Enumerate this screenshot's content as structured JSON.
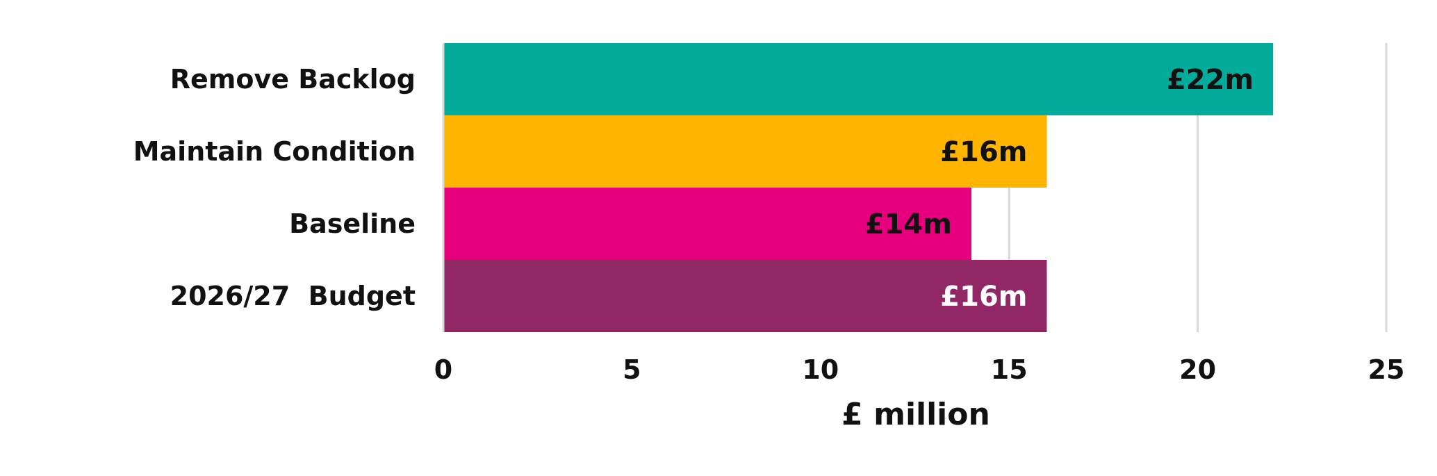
{
  "chart_data": {
    "type": "bar",
    "orientation": "horizontal",
    "categories": [
      "Remove Backlog",
      "Maintain Condition",
      "Baseline",
      "2026/27  Budget"
    ],
    "values": [
      22,
      16,
      14,
      16
    ],
    "data_labels": [
      "£22m",
      "£16m",
      "£14m",
      "£16m"
    ],
    "colors": [
      "#03ac9a",
      "#ffb400",
      "#e6007e",
      "#922765"
    ],
    "label_colors": [
      "#111111",
      "#111111",
      "#111111",
      "#ffffff"
    ],
    "title": "",
    "xlabel": "£ million",
    "ylabel": "",
    "xlim": [
      0,
      25
    ],
    "x_ticks": [
      0,
      5,
      10,
      15,
      20,
      25
    ],
    "grid": "vertical",
    "legend": "none"
  }
}
